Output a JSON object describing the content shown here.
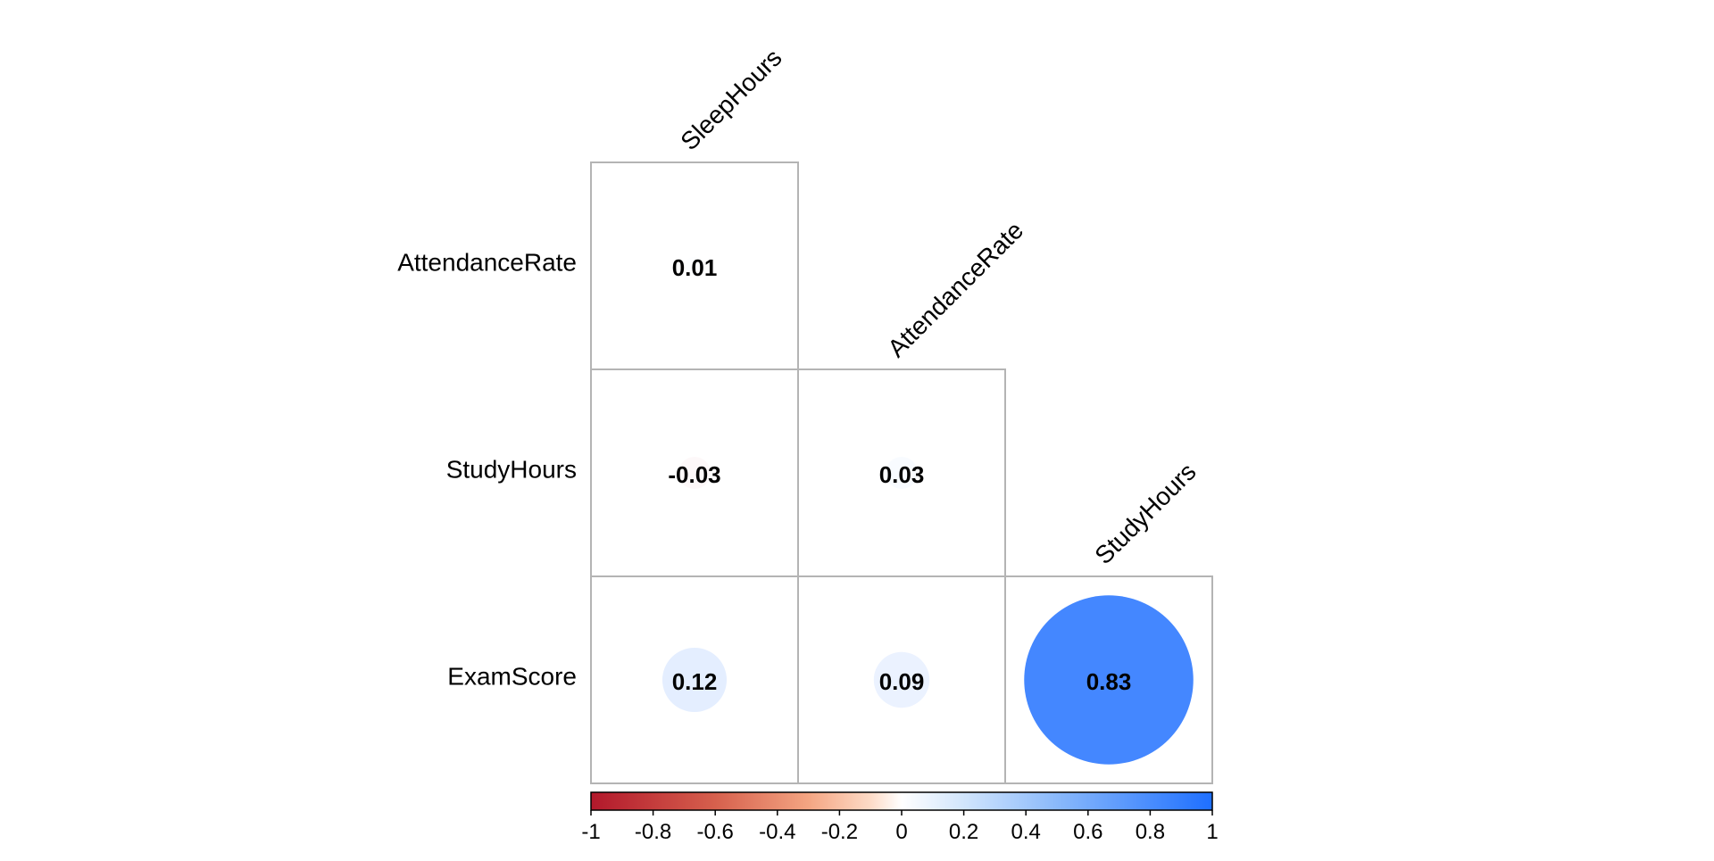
{
  "chart_data": {
    "type": "heatmap",
    "layout": "lower-triangle correlation matrix with circles",
    "row_labels": [
      "AttendanceRate",
      "StudyHours",
      "ExamScore"
    ],
    "col_labels": [
      "SleepHours",
      "AttendanceRate",
      "StudyHours"
    ],
    "cells": [
      {
        "row": 0,
        "col": 0,
        "value": 0.01,
        "label": "0.01"
      },
      {
        "row": 1,
        "col": 0,
        "value": -0.03,
        "label": "-0.03"
      },
      {
        "row": 1,
        "col": 1,
        "value": 0.03,
        "label": "0.03"
      },
      {
        "row": 2,
        "col": 0,
        "value": 0.12,
        "label": "0.12"
      },
      {
        "row": 2,
        "col": 1,
        "value": 0.09,
        "label": "0.09"
      },
      {
        "row": 2,
        "col": 2,
        "value": 0.83,
        "label": "0.83"
      }
    ],
    "colorbar": {
      "range": [
        -1,
        1
      ],
      "ticks": [
        "-1",
        "-0.8",
        "-0.6",
        "-0.4",
        "-0.2",
        "0",
        "0.2",
        "0.4",
        "0.6",
        "0.8",
        "1"
      ],
      "colors": {
        "negative": "#b2182b",
        "mid": "#ffffff",
        "positive": "#1e6fff"
      }
    }
  }
}
